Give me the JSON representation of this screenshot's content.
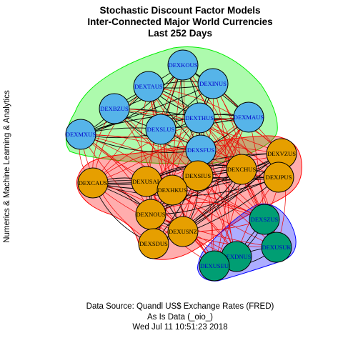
{
  "title": {
    "line1": "Stochastic Discount Factor Models",
    "line2": "Inter-Connected Major World Currencies",
    "line3": "Last 252 Days"
  },
  "y_axis_label": "Numerics & Machine Learning & Analytics",
  "caption": {
    "line1": "Data Source: Quandl US$ Exchange Rates (FRED)",
    "line2": "As Is Data (_oio_)",
    "line3": "Wed Jul 11 10:51:23 2018"
  },
  "colors": {
    "group_blue_fill": "#56b4e9",
    "group_blue_label": "#0000cc",
    "group_orange_fill": "#e69f00",
    "group_orange_label": "#000000",
    "group_green_fill": "#009e73",
    "group_green_label": "#0000cc",
    "hull_green": "#00ee00",
    "hull_red": "#ff0000",
    "hull_blue": "#0000ff",
    "edge_within": "#000000",
    "edge_between": "#ee0000"
  },
  "groups": [
    {
      "id": "g1",
      "hull": "green"
    },
    {
      "id": "g2",
      "hull": "red"
    },
    {
      "id": "g3",
      "hull": "blue"
    }
  ],
  "nodes": [
    {
      "id": "DEXKOUS",
      "label": "DEXKOUS",
      "group": "g1"
    },
    {
      "id": "DEXTAUS",
      "label": "DEXTAUS",
      "group": "g1"
    },
    {
      "id": "DEXINUS",
      "label": "DEXINUS",
      "group": "g1"
    },
    {
      "id": "DEXBZUS",
      "label": "DEXBZUS",
      "group": "g1"
    },
    {
      "id": "DEXTHUS",
      "label": "DEXTHUS",
      "group": "g1"
    },
    {
      "id": "DEXMAUS",
      "label": "DEXMAUS",
      "group": "g1"
    },
    {
      "id": "DEXSLUS",
      "label": "DEXSLUS",
      "group": "g1"
    },
    {
      "id": "DEXMXUS",
      "label": "DEXMXUS",
      "group": "g1"
    },
    {
      "id": "DEXSFUS",
      "label": "DEXSFUS",
      "group": "g1"
    },
    {
      "id": "DEXVZUS",
      "label": "DEXVZUS",
      "group": "g2"
    },
    {
      "id": "DEXCHUS",
      "label": "DEXCHUS",
      "group": "g2"
    },
    {
      "id": "DEXJPUS",
      "label": "DEXJPUS",
      "group": "g2"
    },
    {
      "id": "DEXSIUS",
      "label": "DEXSIUS",
      "group": "g2"
    },
    {
      "id": "DEXCAUS",
      "label": "DEXCAUS",
      "group": "g2"
    },
    {
      "id": "DEXUSAL",
      "label": "DEXUSAL",
      "group": "g2"
    },
    {
      "id": "DEXHKUS",
      "label": "DEXHKUS",
      "group": "g2"
    },
    {
      "id": "DEXNOUS",
      "label": "DEXNOUS",
      "group": "g2"
    },
    {
      "id": "DEXUSNZ",
      "label": "DEXUSNZ",
      "group": "g2"
    },
    {
      "id": "DEXSDUS",
      "label": "DEXSDUS",
      "group": "g2"
    },
    {
      "id": "DEXSZUS",
      "label": "DEXSZUS",
      "group": "g3"
    },
    {
      "id": "DEXDNUS",
      "label": "DEXDNUS",
      "group": "g3"
    },
    {
      "id": "DEXUSUK",
      "label": "DEXUSUK",
      "group": "g3"
    },
    {
      "id": "DEXUSEU",
      "label": "DEXUSEU",
      "group": "g3"
    }
  ]
}
